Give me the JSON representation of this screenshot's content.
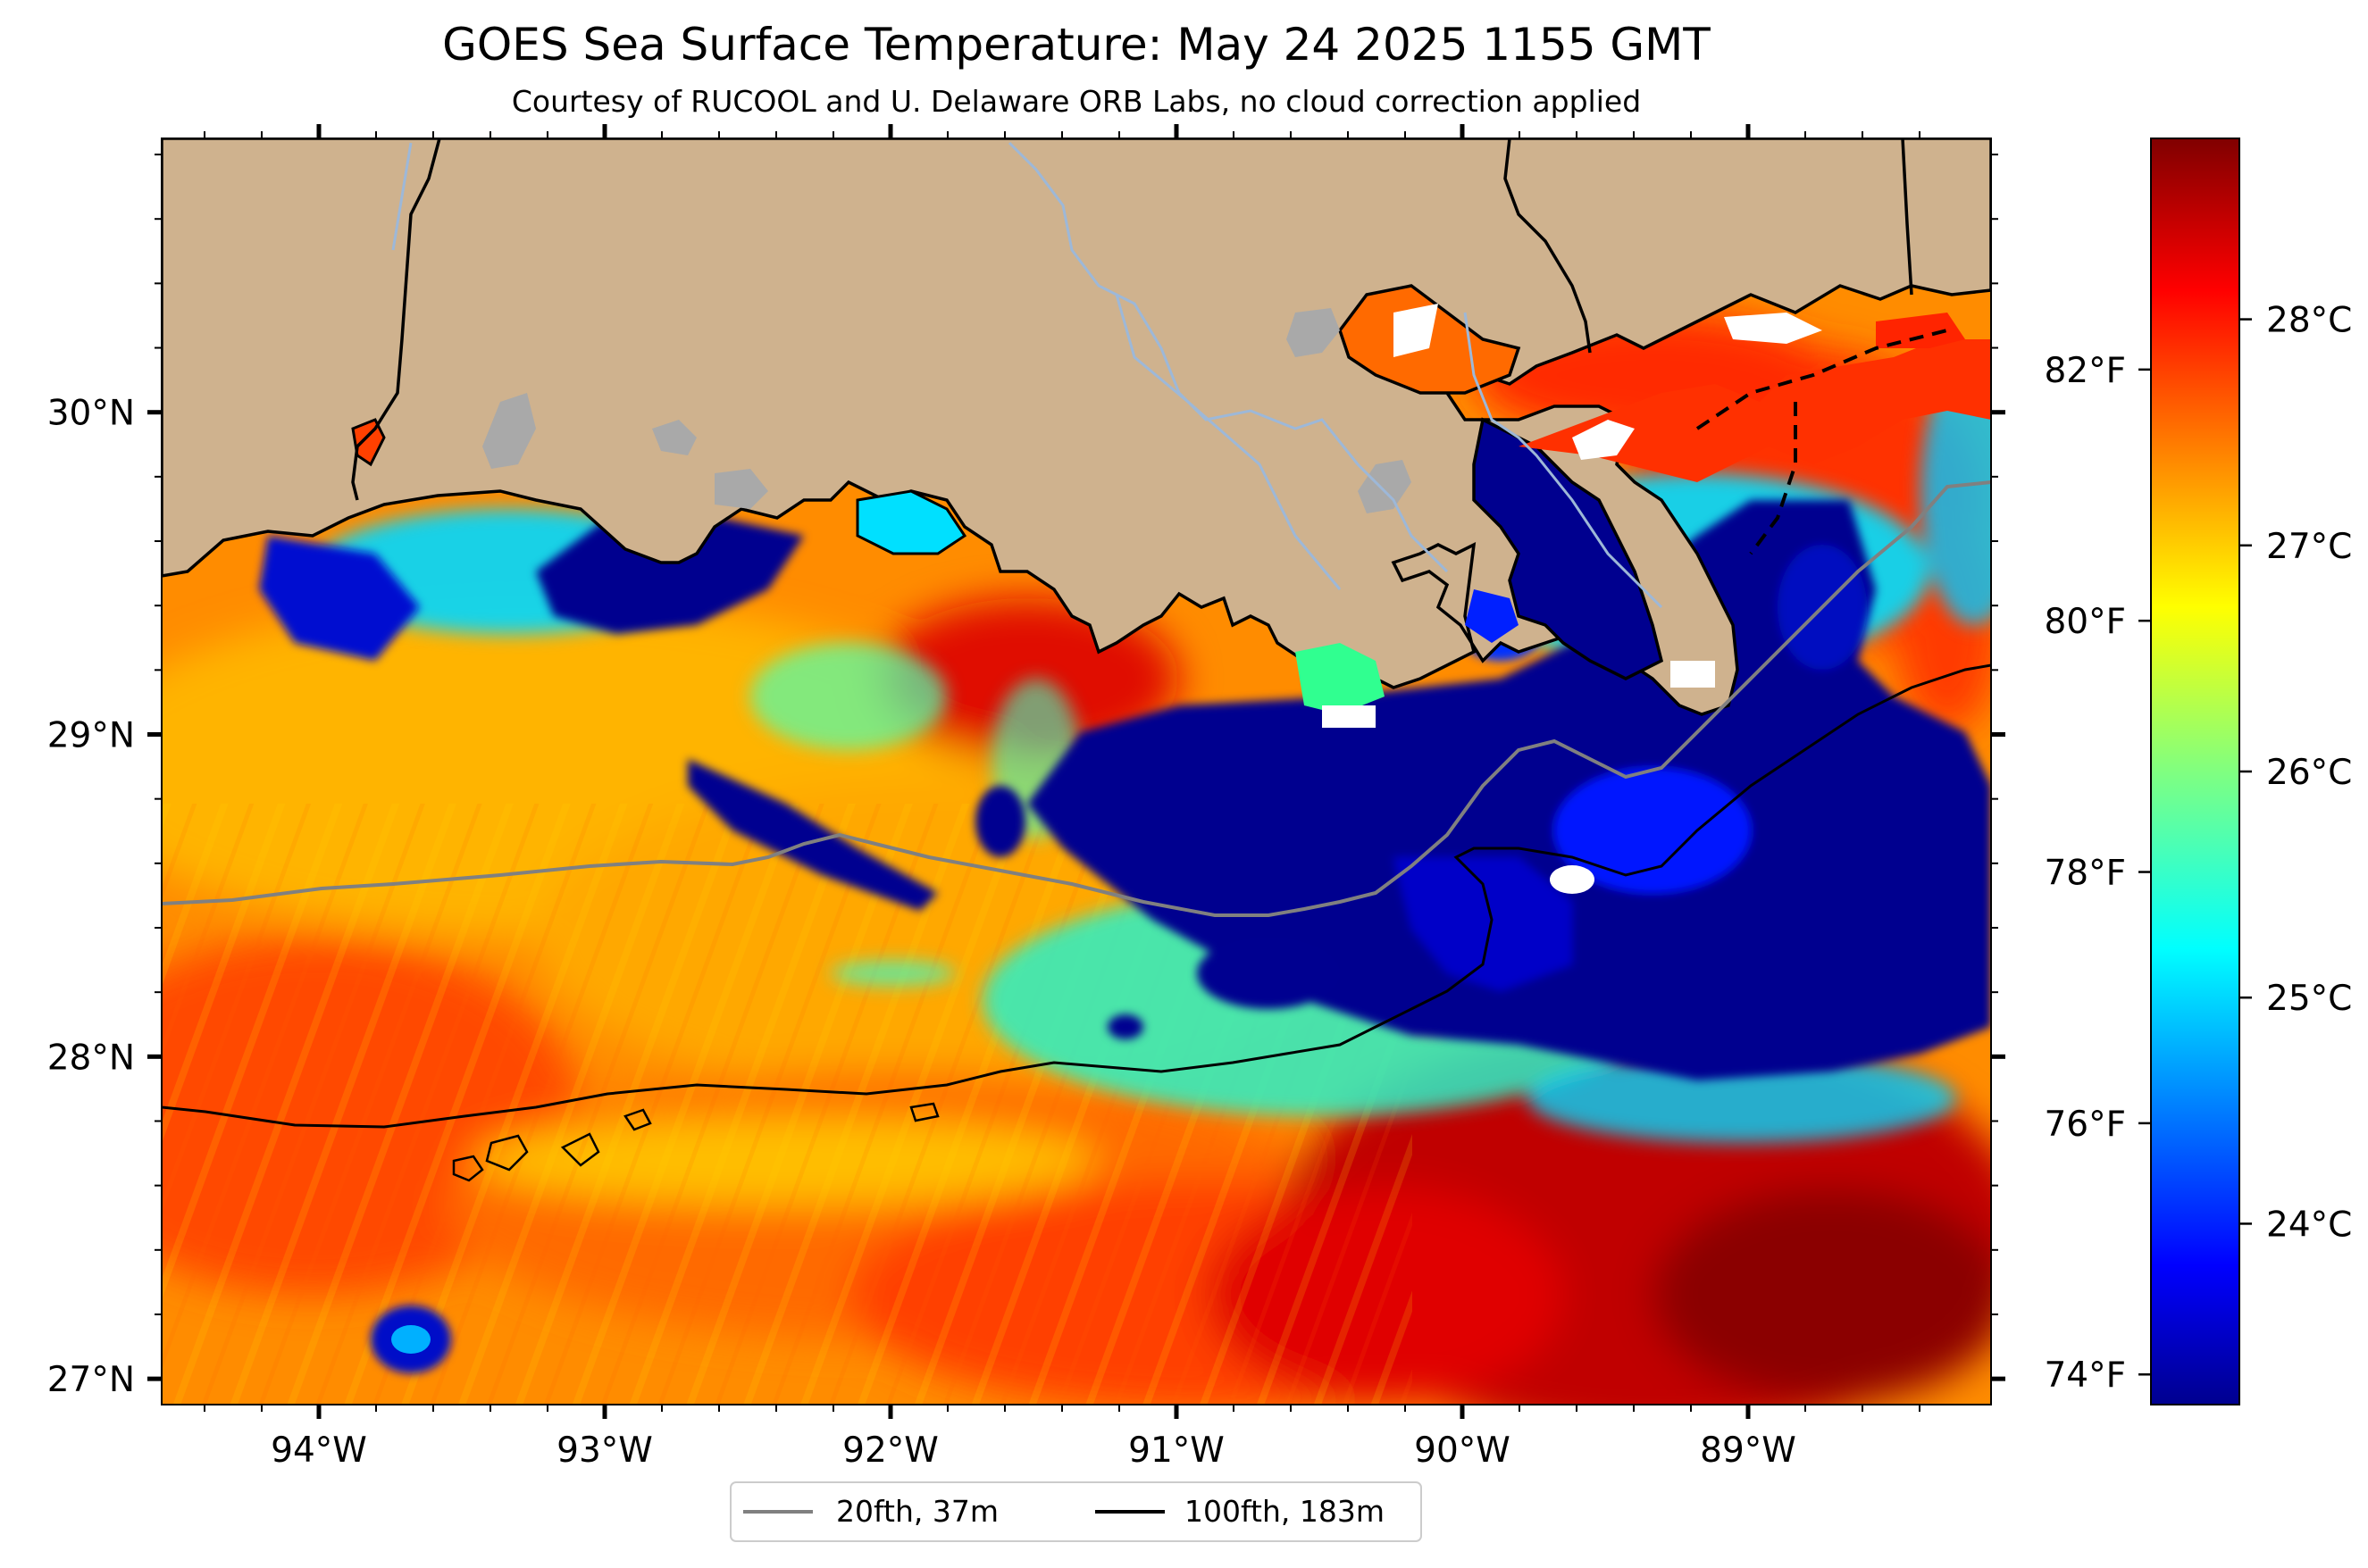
{
  "title": "GOES Sea Surface Temperature: May 24 2025 1155 GMT",
  "subtitle": "Courtesy of RUCOOL and U. Delaware ORB Labs, no cloud correction applied",
  "map": {
    "lon_range": [
      -94.55,
      -88.15
    ],
    "lat_range": [
      26.92,
      30.85
    ],
    "lon_ticks": [
      {
        "value": -94,
        "label": "94°W"
      },
      {
        "value": -93,
        "label": "93°W"
      },
      {
        "value": -92,
        "label": "92°W"
      },
      {
        "value": -91,
        "label": "91°W"
      },
      {
        "value": -90,
        "label": "90°W"
      },
      {
        "value": -89,
        "label": "89°W"
      }
    ],
    "lat_ticks": [
      {
        "value": 30,
        "label": "30°N"
      },
      {
        "value": 29,
        "label": "29°N"
      },
      {
        "value": 28,
        "label": "28°N"
      },
      {
        "value": 27,
        "label": "27°N"
      }
    ],
    "land_color": "#cfb28e",
    "lake_color": "#a9a9a9",
    "river_color": "#9db8d8",
    "cloud_color": "#ffffff"
  },
  "colorbar": {
    "colormap": "jet",
    "celsius_range": [
      23.2,
      28.8
    ],
    "celsius_ticks": [
      {
        "value": 24,
        "label": "24°C"
      },
      {
        "value": 25,
        "label": "25°C"
      },
      {
        "value": 26,
        "label": "26°C"
      },
      {
        "value": 27,
        "label": "27°C"
      },
      {
        "value": 28,
        "label": "28°C"
      }
    ],
    "fahrenheit_ticks": [
      {
        "value": 74,
        "label": "74°F"
      },
      {
        "value": 76,
        "label": "76°F"
      },
      {
        "value": 78,
        "label": "78°F"
      },
      {
        "value": 80,
        "label": "80°F"
      },
      {
        "value": 82,
        "label": "82°F"
      }
    ]
  },
  "legend": {
    "items": [
      {
        "label": "20fth, 37m",
        "color": "#808080"
      },
      {
        "label": "100fth, 183m",
        "color": "#000000"
      }
    ]
  }
}
